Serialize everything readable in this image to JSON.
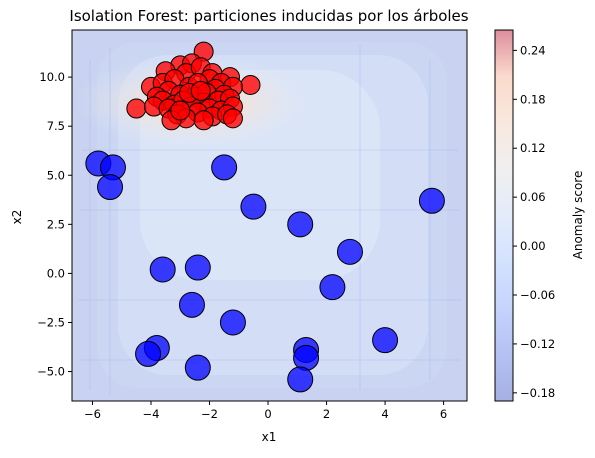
{
  "chart_data": {
    "type": "scatter",
    "title": "Isolation Forest: particiones inducidas por los árboles",
    "xlabel": "x1",
    "ylabel": "x2",
    "xlim": [
      -6.7,
      6.8
    ],
    "ylim": [
      -6.5,
      12.4
    ],
    "xticks": [
      -6,
      -4,
      -2,
      0,
      2,
      4,
      6
    ],
    "xtick_labels": [
      "−6",
      "−4",
      "−2",
      "0",
      "2",
      "4",
      "6"
    ],
    "yticks": [
      -5.0,
      -2.5,
      0.0,
      2.5,
      5.0,
      7.5,
      10.0
    ],
    "ytick_labels": [
      "−5.0",
      "−2.5",
      "0.0",
      "2.5",
      "5.0",
      "7.5",
      "10.0"
    ],
    "grid": false,
    "background": "anomaly score contour (coolwarm colormap)",
    "colorbar": {
      "label": "Anomaly score",
      "range": [
        -0.19,
        0.265
      ],
      "ticks": [
        -0.18,
        -0.12,
        -0.06,
        0.0,
        0.06,
        0.12,
        0.18,
        0.24
      ],
      "tick_labels": [
        "−0.18",
        "−0.12",
        "−0.06",
        "0.00",
        "0.06",
        "0.12",
        "0.18",
        "0.24"
      ],
      "colormap": "coolwarm"
    },
    "series": [
      {
        "color": "#ff0000",
        "marker": "small circle",
        "points": [
          [
            -2.2,
            11.3
          ],
          [
            -3.0,
            10.6
          ],
          [
            -2.6,
            10.7
          ],
          [
            -3.5,
            10.3
          ],
          [
            -2.8,
            10.2
          ],
          [
            -2.3,
            10.5
          ],
          [
            -1.9,
            10.2
          ],
          [
            -1.3,
            10.0
          ],
          [
            -4.0,
            9.5
          ],
          [
            -3.6,
            9.7
          ],
          [
            -3.2,
            9.9
          ],
          [
            -2.0,
            9.9
          ],
          [
            -1.6,
            9.7
          ],
          [
            -0.6,
            9.6
          ],
          [
            -3.4,
            9.3
          ],
          [
            -2.7,
            9.5
          ],
          [
            -2.4,
            9.7
          ],
          [
            -1.8,
            9.4
          ],
          [
            -1.2,
            9.5
          ],
          [
            -3.8,
            9.0
          ],
          [
            -3.0,
            9.1
          ],
          [
            -2.5,
            9.0
          ],
          [
            -2.1,
            9.2
          ],
          [
            -1.5,
            9.1
          ],
          [
            -3.6,
            8.8
          ],
          [
            -3.2,
            8.6
          ],
          [
            -2.9,
            8.8
          ],
          [
            -2.2,
            8.7
          ],
          [
            -1.7,
            8.8
          ],
          [
            -1.3,
            8.9
          ],
          [
            -4.5,
            8.4
          ],
          [
            -3.9,
            8.5
          ],
          [
            -3.4,
            8.4
          ],
          [
            -2.6,
            8.5
          ],
          [
            -2.0,
            8.4
          ],
          [
            -1.6,
            8.3
          ],
          [
            -1.2,
            8.5
          ],
          [
            -3.1,
            8.1
          ],
          [
            -2.4,
            8.2
          ],
          [
            -1.9,
            8.0
          ],
          [
            -1.4,
            8.1
          ],
          [
            -2.8,
            7.9
          ],
          [
            -3.3,
            7.8
          ],
          [
            -2.2,
            7.8
          ],
          [
            -1.2,
            7.9
          ],
          [
            -2.7,
            9.2
          ],
          [
            -2.3,
            9.3
          ],
          [
            -3.0,
            8.3
          ]
        ]
      },
      {
        "color": "#0000ff",
        "marker": "large circle",
        "points": [
          [
            -5.8,
            5.6
          ],
          [
            -5.3,
            5.4
          ],
          [
            -5.4,
            4.4
          ],
          [
            -1.5,
            5.4
          ],
          [
            -0.5,
            3.4
          ],
          [
            5.6,
            3.7
          ],
          [
            1.1,
            2.5
          ],
          [
            2.8,
            1.1
          ],
          [
            -3.6,
            0.2
          ],
          [
            -2.4,
            0.3
          ],
          [
            2.2,
            -0.7
          ],
          [
            -2.6,
            -1.6
          ],
          [
            -1.2,
            -2.5
          ],
          [
            4.0,
            -3.4
          ],
          [
            -3.8,
            -3.8
          ],
          [
            -4.1,
            -4.1
          ],
          [
            1.3,
            -3.9
          ],
          [
            1.3,
            -4.3
          ],
          [
            -2.4,
            -4.8
          ],
          [
            1.1,
            -5.4
          ]
        ]
      }
    ]
  }
}
